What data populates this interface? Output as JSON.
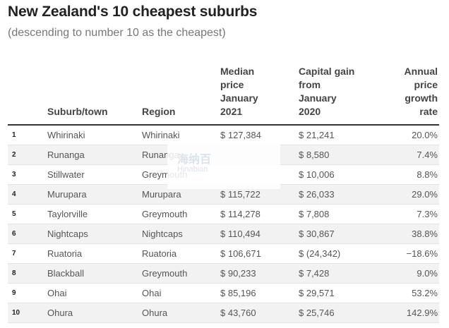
{
  "title": "New Zealand's 10 cheapest suburbs",
  "subtitle": "(descending to number 10 as the cheapest)",
  "headers": {
    "rank": "",
    "suburb": "Suburb/town",
    "region": "Region",
    "median": "Median\nprice\nJanuary\n2021",
    "capital": "Capital gain\nfrom\nJanuary\n2020",
    "growth": "Annual\nprice\ngrowth\nrate"
  },
  "rows": [
    {
      "rank": "1",
      "suburb": "Whirinaki",
      "region": "Whirinaki",
      "median": "$ 127,384",
      "capital": "$ 21,241",
      "growth": "20.0%"
    },
    {
      "rank": "2",
      "suburb": "Runanga",
      "region": "Runanga",
      "median": "",
      "capital": "$ 8,580",
      "growth": "7.4%"
    },
    {
      "rank": "3",
      "suburb": "Stillwater",
      "region": "Greymouth",
      "median": "",
      "capital": "$ 10,006",
      "growth": "8.8%"
    },
    {
      "rank": "4",
      "suburb": "Murupara",
      "region": "Murupara",
      "median": "$ 115,722",
      "capital": "$ 26,033",
      "growth": "29.0%"
    },
    {
      "rank": "5",
      "suburb": "Taylorville",
      "region": "Greymouth",
      "median": "$ 114,278",
      "capital": "$ 7,808",
      "growth": "7.3%"
    },
    {
      "rank": "6",
      "suburb": "Nightcaps",
      "region": "Nightcaps",
      "median": "$ 110,494",
      "capital": "$ 30,867",
      "growth": "38.8%"
    },
    {
      "rank": "7",
      "suburb": "Ruatoria",
      "region": "Ruatoria",
      "median": "$ 106,671",
      "capital": "$ (24,342)",
      "growth": "−18.6%"
    },
    {
      "rank": "8",
      "suburb": "Blackball",
      "region": "Greymouth",
      "median": "$ 90,233",
      "capital": "$ 7,428",
      "growth": "9.0%"
    },
    {
      "rank": "9",
      "suburb": "Ohai",
      "region": "Ohai",
      "median": "$ 85,196",
      "capital": "$ 29,571",
      "growth": "53.2%"
    },
    {
      "rank": "10",
      "suburb": "Ohura",
      "region": "Ohura",
      "median": "$ 43,760",
      "capital": "$ 25,746",
      "growth": "142.9%"
    }
  ],
  "watermark": {
    "text": "海纳百",
    "sub": "Hinabian"
  }
}
